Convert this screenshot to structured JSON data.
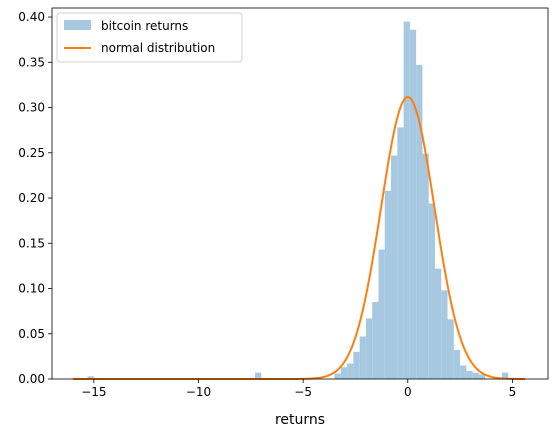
{
  "chart_data": {
    "type": "bar",
    "xlabel": "returns",
    "ylabel": "",
    "xlim": [
      -17,
      6.7
    ],
    "ylim": [
      0,
      0.41
    ],
    "xticks": [
      -15,
      -10,
      -5,
      0,
      5
    ],
    "xtick_labels": [
      "−15",
      "−10",
      "−5",
      "0",
      "5"
    ],
    "yticks": [
      0.0,
      0.05,
      0.1,
      0.15,
      0.2,
      0.25,
      0.3,
      0.35,
      0.4
    ],
    "ytick_labels": [
      "0.00",
      "0.05",
      "0.10",
      "0.15",
      "0.20",
      "0.25",
      "0.30",
      "0.35",
      "0.40"
    ],
    "grid": false,
    "legend_placement": "top-left",
    "series": [
      {
        "name": "bitcoin returns",
        "kind": "histogram",
        "color": "#a6c8e1",
        "bins": [
          {
            "x0": -15.3,
            "x1": -15.0,
            "value": 0.003
          },
          {
            "x0": -7.3,
            "x1": -7.0,
            "value": 0.007
          },
          {
            "x0": -3.5,
            "x1": -3.2,
            "value": 0.006
          },
          {
            "x0": -3.2,
            "x1": -2.9,
            "value": 0.013
          },
          {
            "x0": -2.9,
            "x1": -2.6,
            "value": 0.017
          },
          {
            "x0": -2.6,
            "x1": -2.3,
            "value": 0.03
          },
          {
            "x0": -2.3,
            "x1": -2.0,
            "value": 0.047
          },
          {
            "x0": -2.0,
            "x1": -1.7,
            "value": 0.067
          },
          {
            "x0": -1.7,
            "x1": -1.4,
            "value": 0.085
          },
          {
            "x0": -1.4,
            "x1": -1.1,
            "value": 0.143
          },
          {
            "x0": -1.1,
            "x1": -0.8,
            "value": 0.208
          },
          {
            "x0": -0.8,
            "x1": -0.5,
            "value": 0.247
          },
          {
            "x0": -0.5,
            "x1": -0.2,
            "value": 0.278
          },
          {
            "x0": -0.2,
            "x1": 0.1,
            "value": 0.395
          },
          {
            "x0": 0.1,
            "x1": 0.4,
            "value": 0.386
          },
          {
            "x0": 0.4,
            "x1": 0.7,
            "value": 0.347
          },
          {
            "x0": 0.7,
            "x1": 1.0,
            "value": 0.249
          },
          {
            "x0": 1.0,
            "x1": 1.3,
            "value": 0.194
          },
          {
            "x0": 1.3,
            "x1": 1.6,
            "value": 0.122
          },
          {
            "x0": 1.6,
            "x1": 1.9,
            "value": 0.098
          },
          {
            "x0": 1.9,
            "x1": 2.2,
            "value": 0.066
          },
          {
            "x0": 2.2,
            "x1": 2.5,
            "value": 0.032
          },
          {
            "x0": 2.5,
            "x1": 2.8,
            "value": 0.015
          },
          {
            "x0": 2.8,
            "x1": 3.1,
            "value": 0.009
          },
          {
            "x0": 3.1,
            "x1": 3.4,
            "value": 0.007
          },
          {
            "x0": 3.4,
            "x1": 3.7,
            "value": 0.005
          },
          {
            "x0": 4.5,
            "x1": 4.8,
            "value": 0.007
          }
        ]
      },
      {
        "name": "normal distribution",
        "kind": "line",
        "color": "#ff7f0e",
        "mean": 0.0,
        "std": 1.28,
        "x_range": [
          -16.0,
          5.6
        ]
      }
    ]
  }
}
